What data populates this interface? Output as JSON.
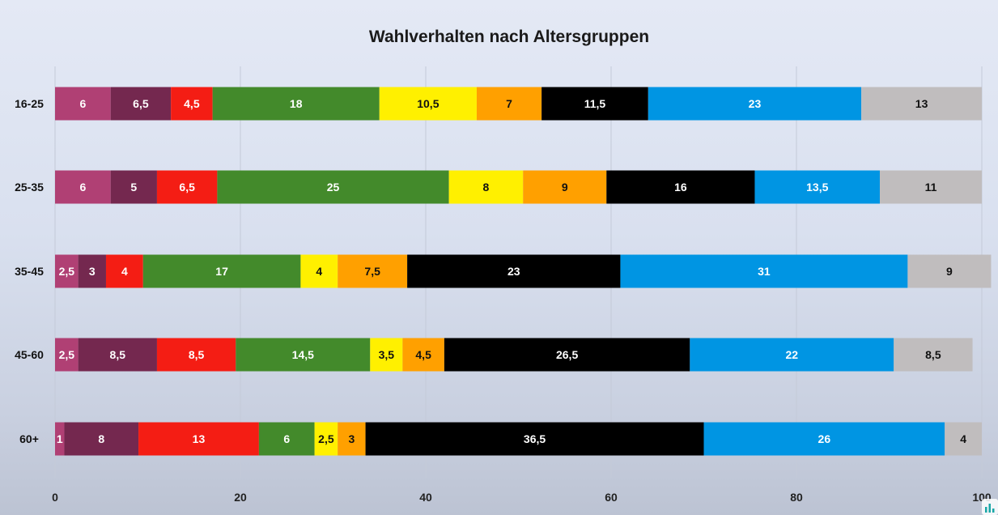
{
  "chart_data": {
    "type": "bar",
    "orientation": "horizontal",
    "stacked": true,
    "title": "Wahlverhalten nach Altersgruppen",
    "categories": [
      "16-25",
      "25-35",
      "35-45",
      "45-60",
      "60+"
    ],
    "xlim": [
      0,
      100
    ],
    "xticks": [
      0,
      20,
      40,
      60,
      80,
      100
    ],
    "grid": true,
    "legend": "none",
    "series": [
      {
        "color": "#b04074",
        "values": [
          6,
          6,
          2.5,
          2.5,
          1
        ]
      },
      {
        "color": "#74284f",
        "values": [
          6.5,
          5,
          3,
          8.5,
          8
        ]
      },
      {
        "color": "#f41d14",
        "values": [
          4.5,
          6.5,
          4,
          8.5,
          13
        ]
      },
      {
        "color": "#438a2b",
        "values": [
          18,
          25,
          17,
          14.5,
          6
        ]
      },
      {
        "color": "#fff000",
        "values": [
          10.5,
          8,
          4,
          3.5,
          2.5
        ]
      },
      {
        "color": "#ffa000",
        "values": [
          7,
          9,
          7.5,
          4.5,
          3
        ]
      },
      {
        "color": "#000000",
        "values": [
          11.5,
          16,
          23,
          26.5,
          36.5
        ]
      },
      {
        "color": "#0095e3",
        "values": [
          23,
          13.5,
          31,
          22,
          26
        ]
      },
      {
        "color": "#c0bdbe",
        "values": [
          13,
          11,
          9,
          8.5,
          4
        ]
      }
    ],
    "data_labels": [
      [
        "6",
        "6,5",
        "4,5",
        "18",
        "10,5",
        "7",
        "11,5",
        "23",
        "13"
      ],
      [
        "6",
        "5",
        "6,5",
        "25",
        "8",
        "9",
        "16",
        "13,5",
        "11"
      ],
      [
        "2,5",
        "3",
        "4",
        "17",
        "4",
        "7,5",
        "23",
        "31",
        "9"
      ],
      [
        "2,5",
        "8,5",
        "8,5",
        "14,5",
        "3,5",
        "4,5",
        "26,5",
        "22",
        "8,5"
      ],
      [
        "1",
        "8",
        "13",
        "6",
        "2,5",
        "3",
        "36,5",
        "26",
        "4"
      ]
    ]
  }
}
